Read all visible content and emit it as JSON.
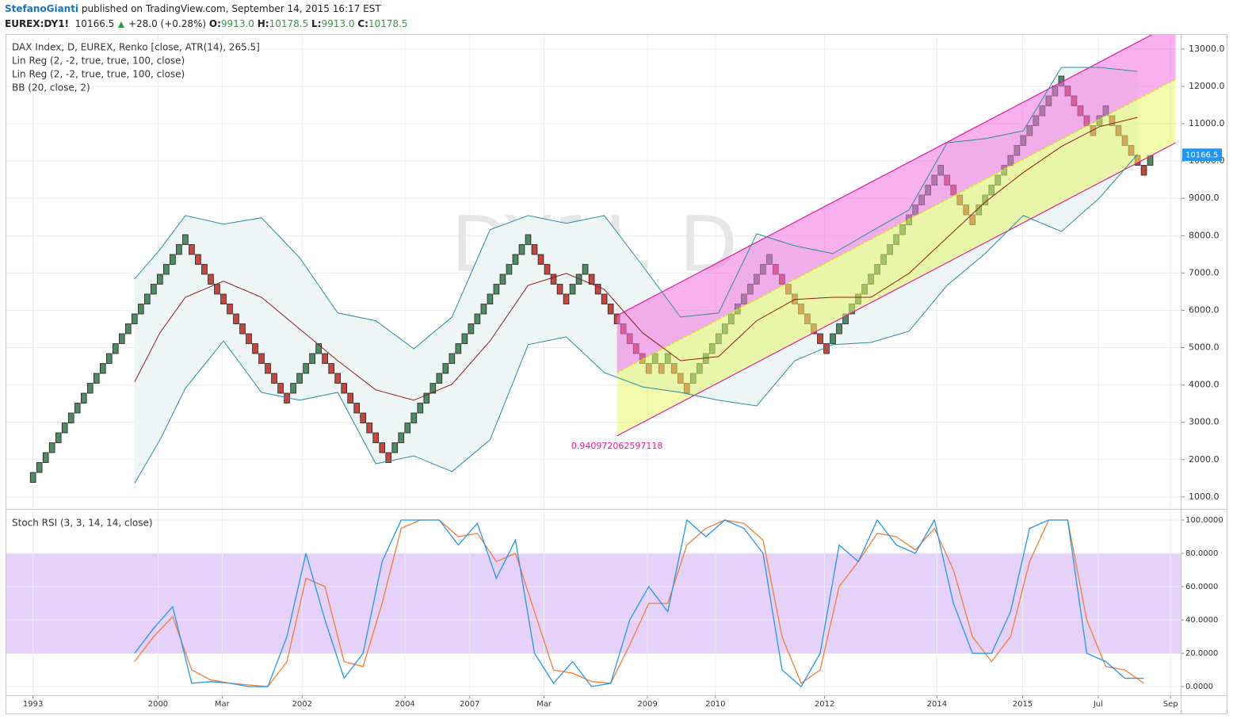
{
  "header": {
    "author": "StefanoGianti",
    "published": "published on TradingView.com, September 14, 2015 16:17 EST",
    "quote": {
      "symbol": "EUREX:DY1!",
      "price": "10166.5",
      "change": "+28.0 (+0.28%)",
      "ohlc": [
        {
          "key": "O:",
          "value": "9913.0"
        },
        {
          "key": "H:",
          "value": "10178.5"
        },
        {
          "key": "L:",
          "value": "9913.0"
        },
        {
          "key": "C:",
          "value": "10178.5"
        }
      ]
    }
  },
  "chart_data": [
    {
      "type": "renko",
      "title": "DAX Index, D, EUREX, Renko [close, ATR(14), 265.5]",
      "legend": [
        "Lin Reg (2, -2, true, true, 100, close)",
        "Lin Reg (2, -2, true, true, 100, close)",
        "BB (20, close, 2)"
      ],
      "watermark": [
        "DY1!, D",
        "DAX Index"
      ],
      "brick_size": 265.5,
      "up_color": "#4f8a63",
      "down_color": "#c1473f",
      "values": [
        1655.5,
        1921,
        2186.5,
        2452,
        2717.5,
        2983,
        3248.5,
        3514,
        3779.5,
        4045,
        4310.5,
        4576,
        4841.5,
        5107,
        5372.5,
        5638,
        5903.5,
        6169,
        6434.5,
        6700,
        6965.5,
        7231,
        7496.5,
        7762,
        8027.5,
        7496.5,
        7231,
        6965.5,
        6700,
        6434.5,
        6169,
        5903.5,
        5638,
        5372.5,
        5107,
        4841.5,
        4576,
        4310.5,
        4045,
        3779.5,
        3514,
        4045,
        4310.5,
        4576,
        4841.5,
        5107,
        4576,
        4310.5,
        4045,
        3779.5,
        3514,
        3248.5,
        2983,
        2717.5,
        2452,
        2186.5,
        1921,
        2452,
        2717.5,
        2983,
        3248.5,
        3514,
        3779.5,
        4045,
        4310.5,
        4576,
        4841.5,
        5107,
        5372.5,
        5638,
        5903.5,
        6169,
        6434.5,
        6700,
        6965.5,
        7231,
        7496.5,
        7762,
        8027.5,
        7496.5,
        7231,
        6965.5,
        6700,
        6434.5,
        6169,
        6700,
        6965.5,
        7231,
        6700,
        6434.5,
        6169,
        5903.5,
        5638,
        5372.5,
        5107,
        4841.5,
        4576,
        4310.5,
        4841.5,
        4310.5,
        4841.5,
        4310.5,
        4045,
        3779.5,
        4310.5,
        4576,
        4841.5,
        5107,
        5372.5,
        5638,
        5903.5,
        6169,
        6434.5,
        6700,
        6965.5,
        7231,
        7496.5,
        6965.5,
        6700,
        6434.5,
        6169,
        5903.5,
        5638,
        5372.5,
        5107,
        4841.5,
        5372.5,
        5638,
        5903.5,
        6169,
        6434.5,
        6700,
        6965.5,
        7231,
        7496.5,
        7762,
        8027.5,
        8293,
        8558.5,
        8824,
        9089.5,
        9355,
        9620.5,
        9886,
        9355,
        9089.5,
        8824,
        8558.5,
        8293,
        8824,
        9089.5,
        9355,
        9620.5,
        9886,
        10151.5,
        10417,
        10682.5,
        10948,
        11213.5,
        11479,
        11744.5,
        12010,
        12275.5,
        11744.5,
        11479,
        11213.5,
        10948,
        10682.5,
        11213.5,
        11479,
        10948,
        10682.5,
        10417,
        10151.5,
        9886,
        9620.5,
        10151.5
      ],
      "bollinger": {
        "color": "#2a8c9c",
        "basis_color": "#8b1c1c",
        "fill": "#eef6f5",
        "x": [
          16,
          20,
          24,
          30,
          36,
          42,
          48,
          54,
          60,
          66,
          72,
          78,
          84,
          90,
          96,
          102,
          108,
          114,
          120,
          126,
          132,
          138,
          144,
          150,
          156,
          162,
          168,
          174
        ],
        "upper": [
          6840,
          7630,
          8540,
          8310,
          8480,
          7410,
          5930,
          5720,
          4970,
          5820,
          8160,
          8540,
          8330,
          8540,
          7200,
          5820,
          5930,
          8050,
          7730,
          7520,
          8110,
          8690,
          10490,
          10600,
          10810,
          12510,
          12510,
          12400
        ],
        "basis": [
          4080,
          5400,
          6350,
          6780,
          6350,
          5500,
          4650,
          3870,
          3590,
          4020,
          5180,
          6670,
          6990,
          6560,
          5400,
          4650,
          4760,
          5720,
          6290,
          6350,
          6350,
          6990,
          7950,
          8900,
          9690,
          10390,
          10920,
          11170
        ],
        "lower": [
          1360,
          2530,
          3910,
          5180,
          3800,
          3590,
          3800,
          1890,
          2100,
          1680,
          2530,
          5080,
          5290,
          4330,
          3950,
          3800,
          3590,
          3440,
          4650,
          5080,
          5140,
          5440,
          6670,
          7520,
          8540,
          8110,
          9010,
          10180
        ]
      },
      "regression": {
        "color": "#e3199b",
        "mid_color": "#d6e021",
        "upper_fill": "#f46fe0",
        "lower_fill": "#e6f56a",
        "x": [
          92,
          180
        ],
        "upper": [
          5860,
          13720
        ],
        "middle": [
          4330,
          12190
        ],
        "lower": [
          2635,
          10490
        ],
        "annotation": "0.940972062597118"
      },
      "last_price": 10166.5,
      "last_color": "#2196f3",
      "xlim": [
        -4.2,
        180.8
      ],
      "ylim": [
        700,
        13380
      ],
      "yticks": [
        {
          "value": 1000,
          "label": "1000.0"
        },
        {
          "value": 2000,
          "label": "2000.0"
        },
        {
          "value": 3000,
          "label": "3000.0"
        },
        {
          "value": 4000,
          "label": "4000.0"
        },
        {
          "value": 5000,
          "label": "5000.0"
        },
        {
          "value": 6000,
          "label": "6000.0"
        },
        {
          "value": 7000,
          "label": "7000.0"
        },
        {
          "value": 8000,
          "label": "8000.0"
        },
        {
          "value": 9000,
          "label": "9000.0"
        },
        {
          "value": 10000,
          "label": "10000.0"
        },
        {
          "value": 11000,
          "label": "11000.0"
        },
        {
          "value": 12000,
          "label": "12000.0"
        },
        {
          "value": 13000,
          "label": "13000.0"
        }
      ],
      "grid": true
    },
    {
      "type": "line",
      "title": "Stoch RSI (3, 3, 14, 14, close)",
      "x": [
        16,
        19,
        22,
        25,
        28,
        31,
        34,
        37,
        40,
        43,
        46,
        49,
        52,
        55,
        58,
        61,
        64,
        67,
        70,
        73,
        76,
        79,
        82,
        85,
        88,
        91,
        94,
        97,
        100,
        103,
        106,
        109,
        112,
        115,
        118,
        121,
        124,
        127,
        130,
        133,
        136,
        139,
        142,
        145,
        148,
        151,
        154,
        157,
        160,
        163,
        166,
        169,
        172,
        175
      ],
      "series": [
        {
          "color": "#2196f3",
          "values": [
            20,
            35,
            48,
            2,
            3,
            2,
            0,
            0,
            30,
            80,
            40,
            5,
            20,
            75,
            100,
            100,
            100,
            85,
            98,
            65,
            88,
            20,
            2,
            15,
            0,
            2,
            40,
            60,
            45,
            100,
            90,
            100,
            95,
            80,
            10,
            0,
            20,
            85,
            75,
            100,
            85,
            80,
            100,
            50,
            20,
            20,
            45,
            95,
            100,
            100,
            20,
            15,
            5,
            5
          ]
        },
        {
          "color": "#f57c30",
          "values": [
            15,
            30,
            42,
            10,
            4,
            2,
            1,
            0,
            15,
            65,
            60,
            15,
            12,
            50,
            95,
            100,
            100,
            90,
            92,
            75,
            80,
            45,
            10,
            8,
            3,
            2,
            25,
            50,
            50,
            85,
            95,
            100,
            98,
            88,
            30,
            2,
            10,
            60,
            75,
            92,
            90,
            82,
            95,
            70,
            30,
            15,
            30,
            75,
            100,
            100,
            40,
            12,
            10,
            2
          ]
        }
      ],
      "band": [
        20,
        80
      ],
      "band_color": "#e2c9fa",
      "xlim": [
        -4.2,
        180.8
      ],
      "ylim": [
        -5.2,
        106.2
      ],
      "yticks": [
        {
          "value": 0,
          "label": "0.0000"
        },
        {
          "value": 20,
          "label": "20.0000"
        },
        {
          "value": 40,
          "label": "40.0000"
        },
        {
          "value": 60,
          "label": "60.0000"
        },
        {
          "value": 80,
          "label": "80.0000"
        },
        {
          "value": 100,
          "label": "100.0000"
        }
      ],
      "xticks": [
        {
          "value": 0,
          "label": "1993"
        },
        {
          "value": 19.7,
          "label": "2000"
        },
        {
          "value": 29.8,
          "label": "Mar"
        },
        {
          "value": 42.4,
          "label": "2002"
        },
        {
          "value": 58.6,
          "label": "2004"
        },
        {
          "value": 68.8,
          "label": "2007"
        },
        {
          "value": 80.5,
          "label": "Mar"
        },
        {
          "value": 96.8,
          "label": "2009"
        },
        {
          "value": 107.5,
          "label": "2010"
        },
        {
          "value": 124.7,
          "label": "2012"
        },
        {
          "value": 142.4,
          "label": "2014"
        },
        {
          "value": 155.9,
          "label": "2015"
        },
        {
          "value": 167.8,
          "label": "Jul"
        },
        {
          "value": 179.2,
          "label": "Sep"
        }
      ],
      "grid": true
    }
  ]
}
